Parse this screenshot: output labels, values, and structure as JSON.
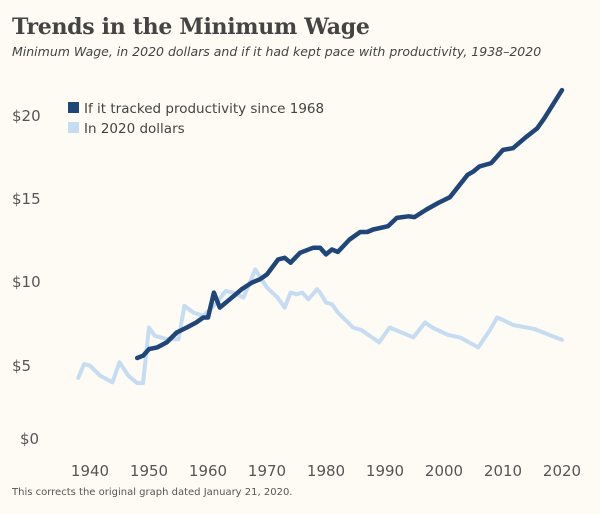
{
  "chart_data": {
    "type": "line",
    "title": "Trends in the Minimum Wage",
    "subtitle": "Minimum Wage, in 2020 dollars and if it had kept pace with productivity, 1938–2020",
    "footnote": "This corrects the original graph dated January 21, 2020.",
    "xlabel": "",
    "ylabel": "",
    "xlim": [
      1938,
      2020
    ],
    "ylim": [
      0,
      22
    ],
    "grid": false,
    "legend_placement": "top-left",
    "x_ticks": [
      "1940",
      "1950",
      "1960",
      "1970",
      "1980",
      "1990",
      "2000",
      "2010",
      "2020"
    ],
    "y_ticks": [
      "$0",
      "$5",
      "$10",
      "$15",
      "$20"
    ],
    "series": [
      {
        "name": "If it tracked productivity since 1968",
        "color": "#1f4579",
        "x": [
          1948,
          1949,
          1950,
          1951.4,
          1953,
          1954.7,
          1956.4,
          1958,
          1959.2,
          1960,
          1961,
          1962,
          1963.7,
          1965.7,
          1967.4,
          1968.8,
          1970,
          1971.9,
          1973,
          1974,
          1975.6,
          1977.8,
          1979,
          1980,
          1981,
          1982,
          1984,
          1985.8,
          1987,
          1988,
          1990.5,
          1992,
          1994,
          1995,
          1997,
          1999,
          2001,
          2004,
          2005,
          2006,
          2008,
          2010,
          2011.7,
          2014,
          2015.8,
          2017,
          2020
        ],
        "y": [
          5.36,
          5.5,
          5.9,
          6.0,
          6.3,
          6.9,
          7.2,
          7.5,
          7.8,
          7.8,
          9.3,
          8.4,
          8.9,
          9.5,
          9.9,
          10.1,
          10.4,
          11.3,
          11.4,
          11.1,
          11.7,
          12.0,
          12.0,
          11.6,
          11.9,
          11.75,
          12.5,
          12.95,
          12.95,
          13.1,
          13.3,
          13.8,
          13.9,
          13.85,
          14.3,
          14.7,
          15.05,
          16.4,
          16.6,
          16.9,
          17.1,
          17.9,
          18.0,
          18.7,
          19.2,
          19.8,
          21.5
        ]
      },
      {
        "name": "In 2020 dollars",
        "color": "#c5dcf2",
        "x": [
          1938,
          1939,
          1940,
          1941.7,
          1943.8,
          1945,
          1946.5,
          1948,
          1949,
          1950,
          1951,
          1953,
          1955,
          1956,
          1957.5,
          1959.2,
          1961.5,
          1963,
          1964.2,
          1966,
          1968,
          1970,
          1971.8,
          1973,
          1974,
          1975,
          1976,
          1977,
          1978.5,
          1979,
          1980,
          1981,
          1982,
          1984.6,
          1986,
          1989,
          1990.8,
          1994.8,
          1996.8,
          1998,
          2000.7,
          2002.7,
          2005.8,
          2007.8,
          2009,
          2010,
          2011.7,
          2014,
          2015.4,
          2017.5,
          2020
        ],
        "y": [
          4.16,
          5.0,
          4.9,
          4.3,
          3.9,
          5.1,
          4.3,
          3.85,
          3.85,
          7.2,
          6.7,
          6.5,
          6.5,
          8.5,
          8.1,
          7.9,
          8.7,
          9.4,
          9.3,
          9.0,
          10.7,
          9.6,
          9.0,
          8.4,
          9.3,
          9.2,
          9.3,
          8.9,
          9.5,
          9.3,
          8.7,
          8.6,
          8.1,
          7.2,
          7.05,
          6.3,
          7.2,
          6.6,
          7.5,
          7.2,
          6.75,
          6.6,
          6.0,
          7.05,
          7.8,
          7.65,
          7.35,
          7.2,
          7.1,
          6.8,
          6.45
        ]
      }
    ]
  }
}
